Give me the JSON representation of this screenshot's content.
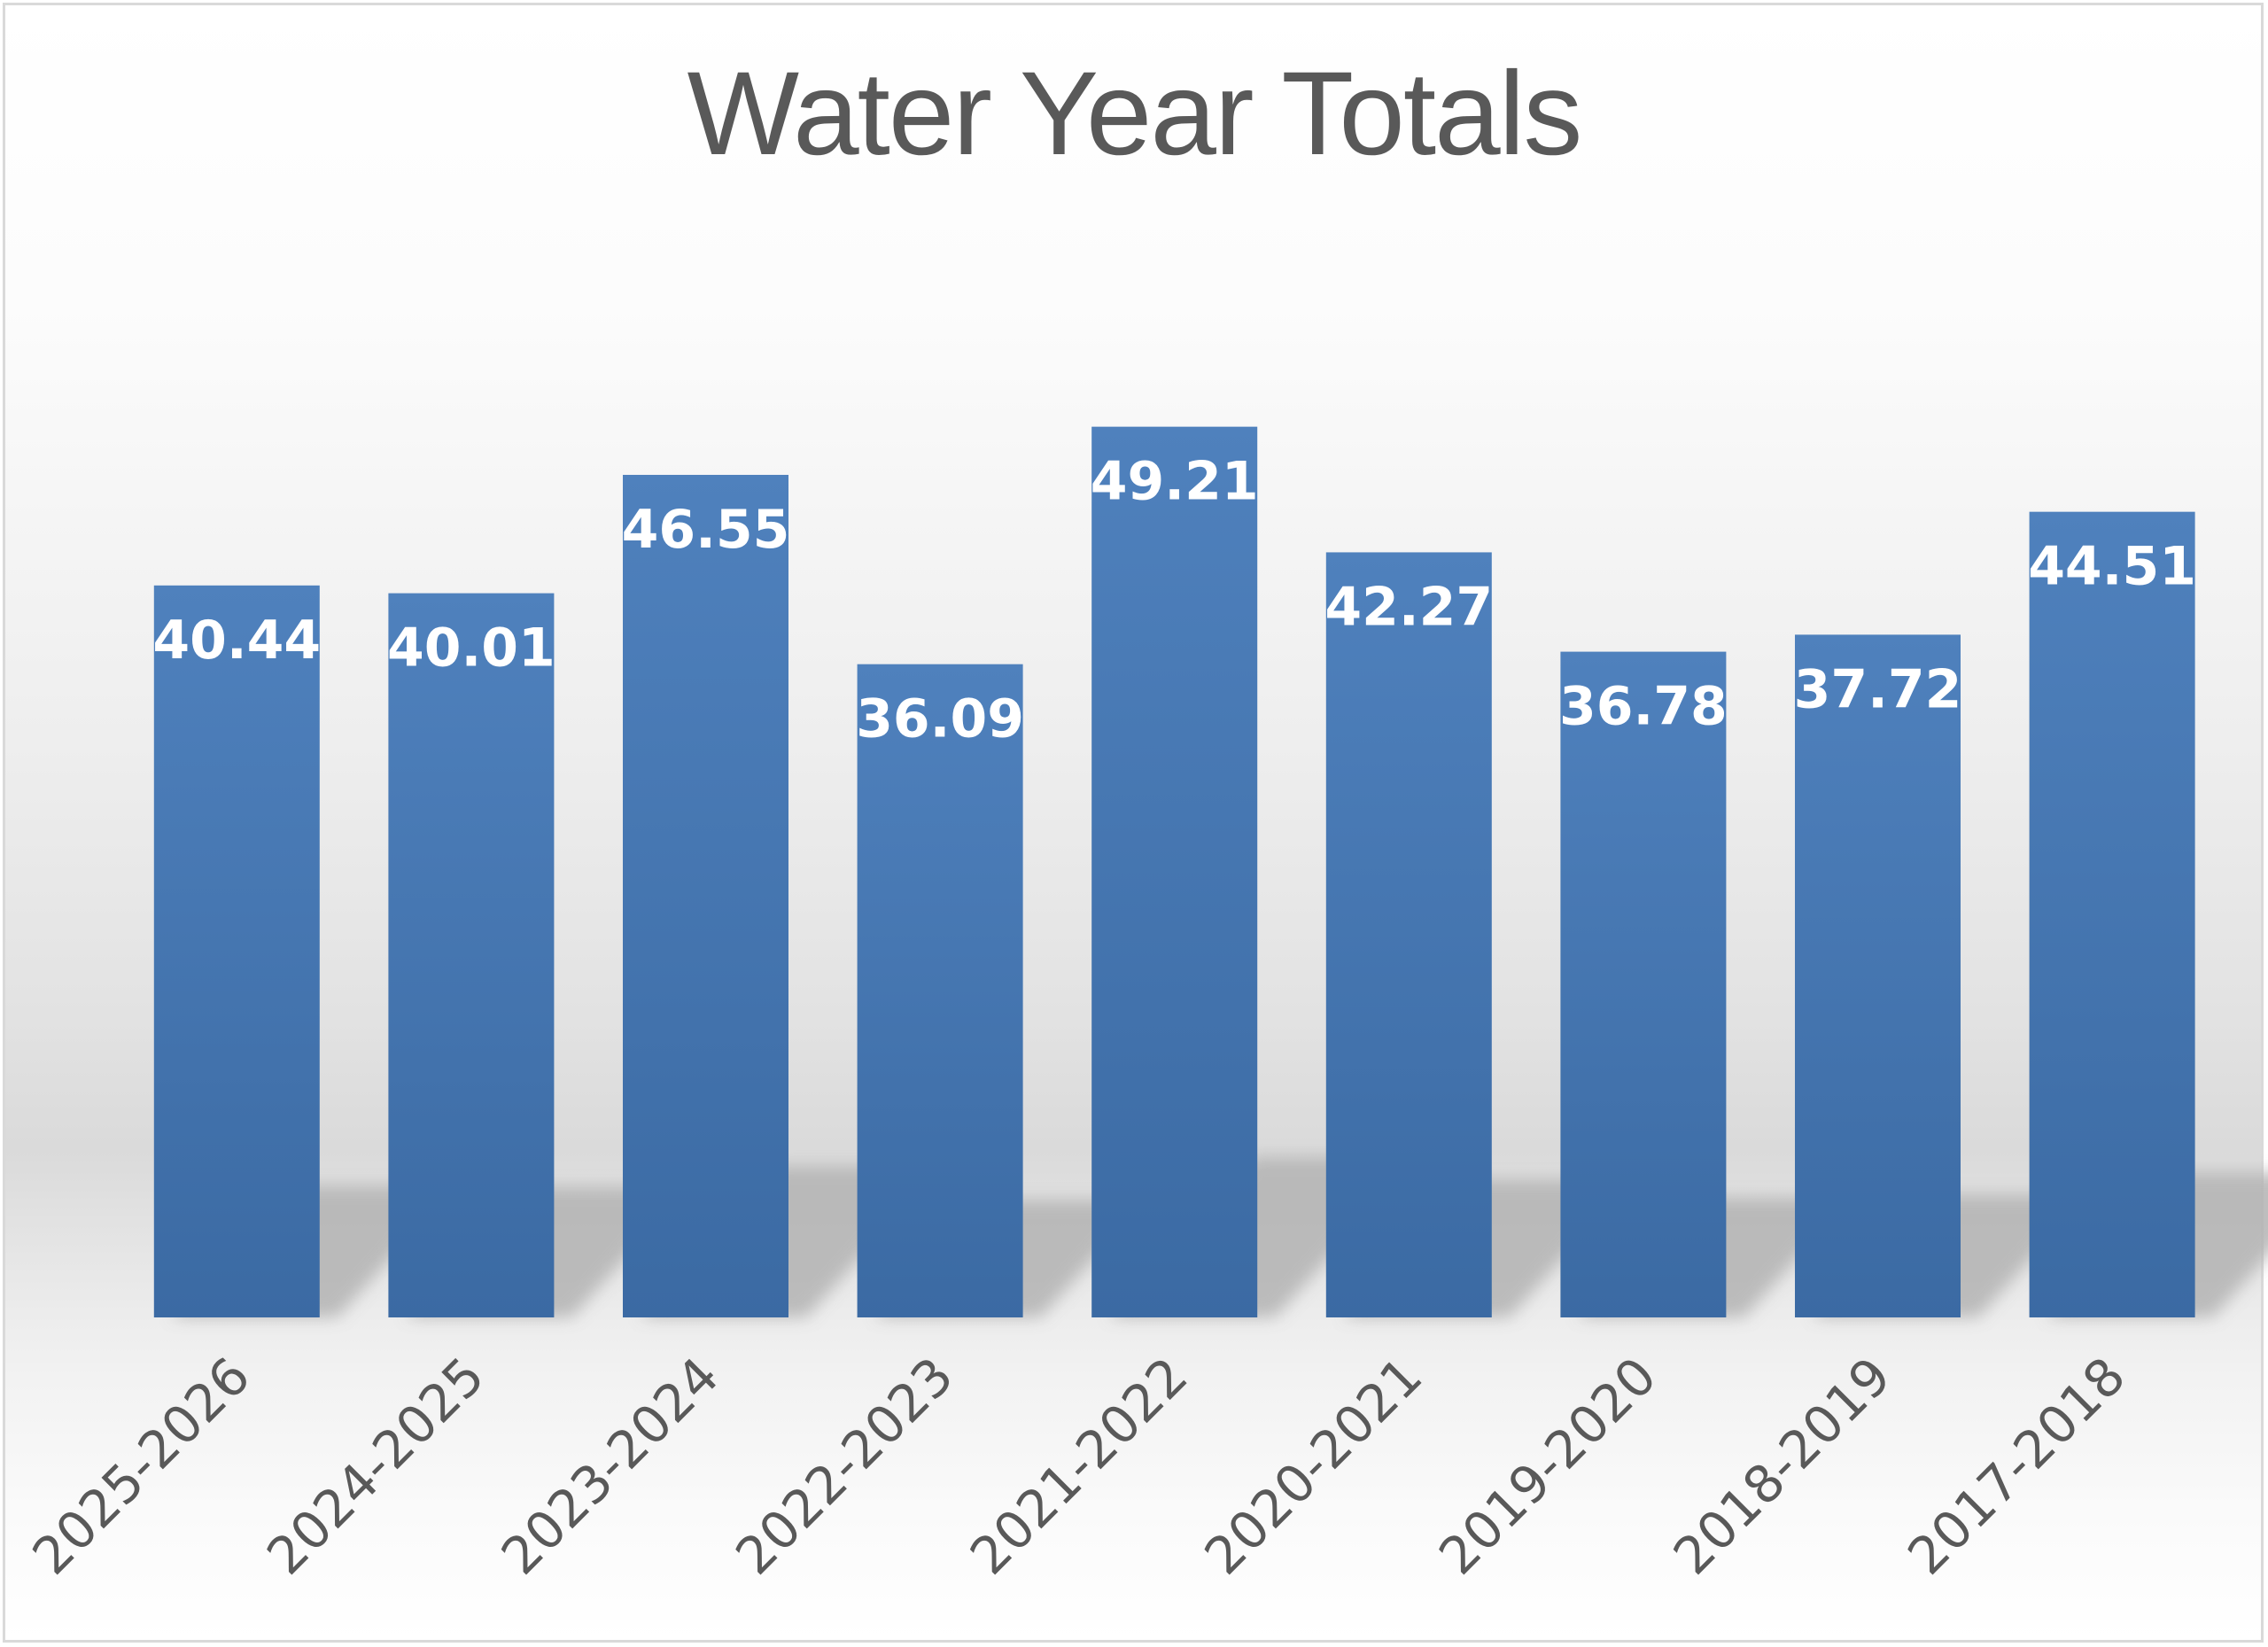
{
  "chart_data": {
    "type": "bar",
    "title": "Water Year Totals",
    "xlabel": "",
    "ylabel": "",
    "ylim": [
      0,
      50
    ],
    "grid": false,
    "legend": "none",
    "categories": [
      "2025-2026",
      "2024-2025",
      "2023-2024",
      "2022-2023",
      "2021-2022",
      "2020-2021",
      "2019-2020",
      "2018-2019",
      "2017-2018"
    ],
    "values": [
      40.44,
      40.01,
      46.55,
      36.09,
      49.21,
      42.27,
      36.78,
      37.72,
      44.51
    ],
    "data_labels": [
      "40.44",
      "40.01",
      "46.55",
      "36.09",
      "49.21",
      "42.27",
      "36.78",
      "37.72",
      "44.51"
    ],
    "colors": {
      "bar_top": "#4f81bd",
      "bar_bottom": "#3b6aa3",
      "label": "#ffffff",
      "text": "#595959",
      "shadow": "#b3b3b3"
    }
  }
}
